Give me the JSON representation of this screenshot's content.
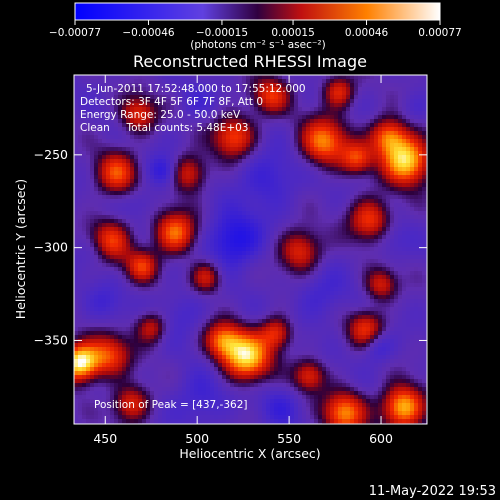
{
  "chart_data": {
    "type": "heatmap",
    "title": "Reconstructed RHESSI Image",
    "xlabel": "Heliocentric X (arcsec)",
    "ylabel": "Heliocentric Y (arcsec)",
    "xlim": [
      433,
      625
    ],
    "ylim": [
      -395,
      -207
    ],
    "x_ticks": [
      {
        "v": 450,
        "label": "450"
      },
      {
        "v": 500,
        "label": "500"
      },
      {
        "v": 550,
        "label": "550"
      },
      {
        "v": 600,
        "label": "600"
      }
    ],
    "y_ticks": [
      {
        "v": -250,
        "label": "−250"
      },
      {
        "v": -300,
        "label": "−300"
      },
      {
        "v": -350,
        "label": "−350"
      }
    ],
    "colorbar": {
      "min": -0.00077,
      "max": 0.00077,
      "units_label": "(photons cm⁻² s⁻¹ asec⁻²)",
      "ticks": [
        {
          "v": -0.00077,
          "label": "−0.00077"
        },
        {
          "v": -0.00046,
          "label": "−0.00046"
        },
        {
          "v": -0.00015,
          "label": "−0.00015"
        },
        {
          "v": 0.00015,
          "label": "0.00015"
        },
        {
          "v": 0.00046,
          "label": "0.00046"
        },
        {
          "v": 0.00077,
          "label": "0.00077"
        }
      ]
    },
    "annotations": [
      "5-Jun-2011 17:52:48.000 to 17:55:12.000",
      "Detectors: 3F 4F 5F 6F 7F 8F, Att 0",
      "Energy Range: 25.0 - 50.0 keV",
      "Clean     Total counts: 5.48E+03"
    ],
    "peak_label": "Position of Peak = [437,-362]",
    "blobs": [
      {
        "x": 436,
        "y": -362,
        "v": 0.00077,
        "s": 7
      },
      {
        "x": 452,
        "y": -358,
        "v": 0.00035,
        "s": 8
      },
      {
        "x": 527,
        "y": -359,
        "v": 0.00066,
        "s": 9
      },
      {
        "x": 514,
        "y": -350,
        "v": 0.0004,
        "s": 7
      },
      {
        "x": 543,
        "y": -346,
        "v": 0.0003,
        "s": 6
      },
      {
        "x": 614,
        "y": -253,
        "v": 0.00068,
        "s": 9
      },
      {
        "x": 604,
        "y": -240,
        "v": 0.00042,
        "s": 7
      },
      {
        "x": 569,
        "y": -243,
        "v": 0.00047,
        "s": 9
      },
      {
        "x": 587,
        "y": -252,
        "v": 0.0003,
        "s": 6
      },
      {
        "x": 612,
        "y": -386,
        "v": 0.00062,
        "s": 8
      },
      {
        "x": 580,
        "y": -389,
        "v": 0.00048,
        "s": 8
      },
      {
        "x": 561,
        "y": -369,
        "v": 0.00028,
        "s": 6
      },
      {
        "x": 452,
        "y": -297,
        "v": 0.00042,
        "s": 8
      },
      {
        "x": 488,
        "y": -292,
        "v": 0.00045,
        "s": 8
      },
      {
        "x": 470,
        "y": -310,
        "v": 0.0003,
        "s": 6
      },
      {
        "x": 520,
        "y": -240,
        "v": 0.00038,
        "s": 8
      },
      {
        "x": 495,
        "y": -260,
        "v": 0.0003,
        "s": 7
      },
      {
        "x": 456,
        "y": -260,
        "v": 0.00035,
        "s": 8
      },
      {
        "x": 468,
        "y": -228,
        "v": 0.0003,
        "s": 7
      },
      {
        "x": 556,
        "y": -302,
        "v": 0.00032,
        "s": 8
      },
      {
        "x": 594,
        "y": -285,
        "v": 0.00036,
        "s": 8
      },
      {
        "x": 600,
        "y": -320,
        "v": 0.00025,
        "s": 6
      },
      {
        "x": 592,
        "y": -344,
        "v": 0.00032,
        "s": 7
      },
      {
        "x": 464,
        "y": -384,
        "v": 0.0003,
        "s": 7
      },
      {
        "x": 505,
        "y": -316,
        "v": 0.00026,
        "s": 6
      },
      {
        "x": 540,
        "y": -218,
        "v": 0.0003,
        "s": 7
      },
      {
        "x": 577,
        "y": -216,
        "v": 0.0003,
        "s": 6
      },
      {
        "x": 475,
        "y": -343,
        "v": 0.00024,
        "s": 6
      },
      {
        "x": 520,
        "y": -296,
        "v": -0.0006,
        "s": 10
      },
      {
        "x": 482,
        "y": -259,
        "v": -0.00052,
        "s": 6
      },
      {
        "x": 539,
        "y": -263,
        "v": -0.00042,
        "s": 11
      },
      {
        "x": 446,
        "y": -301,
        "v": -0.00042,
        "s": 7
      },
      {
        "x": 598,
        "y": -353,
        "v": -0.00046,
        "s": 6
      },
      {
        "x": 502,
        "y": -381,
        "v": -0.0004,
        "s": 10
      },
      {
        "x": 567,
        "y": -326,
        "v": -0.00036,
        "s": 10
      },
      {
        "x": 606,
        "y": -296,
        "v": -0.00032,
        "s": 7
      },
      {
        "x": 545,
        "y": -386,
        "v": -0.00036,
        "s": 8
      },
      {
        "x": 491,
        "y": -335,
        "v": -0.00034,
        "s": 9
      },
      {
        "x": 470,
        "y": -275,
        "v": -0.0003,
        "s": 6
      },
      {
        "x": 450,
        "y": -330,
        "v": -0.00034,
        "s": 7
      },
      {
        "x": 500,
        "y": -222,
        "v": -0.0003,
        "s": 7
      },
      {
        "x": 620,
        "y": -225,
        "v": -0.0003,
        "s": 6
      }
    ]
  },
  "footer_timestamp": "11-May-2022 19:53"
}
